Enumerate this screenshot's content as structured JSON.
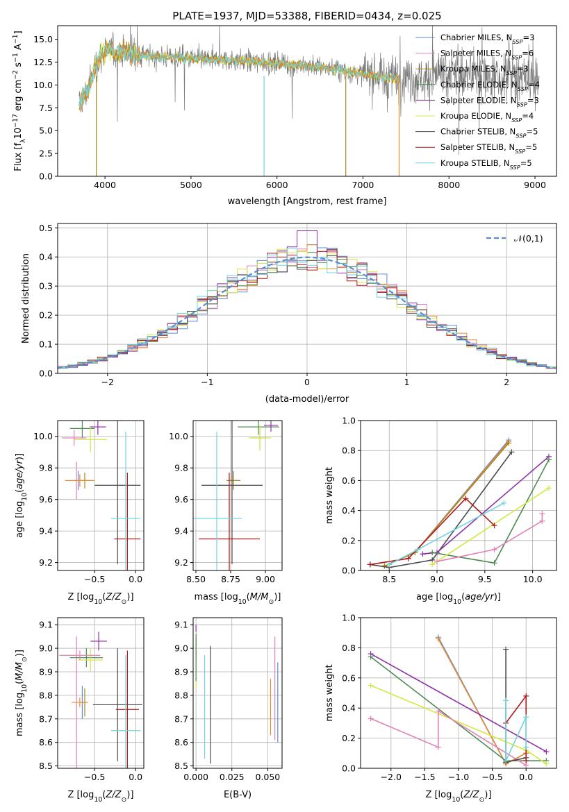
{
  "figure_title": "PLATE=1937, MJD=53388, FIBERID=0434, z=0.025",
  "colors": {
    "Chabrier MILES": "#5b8bd8",
    "Salpeter MILES": "#e37fb5",
    "Kroupa MILES": "#a8871f",
    "Chabrier ELODIE": "#4d8a52",
    "Salpeter ELODIE": "#8e2ea8",
    "Kroupa ELODIE": "#d4e842",
    "Chabrier STELIB": "#4a4a4a",
    "Salpeter STELIB": "#b01818",
    "Kroupa STELIB": "#6fd4de",
    "orange": "#e88a2e",
    "normal": "#5b8bd8"
  },
  "chart_data": [
    {
      "type": "line",
      "name": "spectrum",
      "xlabel": "wavelength [Angstrom, rest frame]",
      "ylabel": "Flux [f_λ 10^-17 erg cm^-2 s^-1 A^-1]",
      "xlim": [
        3450,
        9250
      ],
      "ylim": [
        0,
        16.5
      ],
      "xticks": [
        4000,
        5000,
        6000,
        7000,
        8000,
        9000
      ],
      "yticks": [
        0.0,
        2.5,
        5.0,
        7.5,
        10.0,
        12.5,
        15.0
      ],
      "legend": [
        "Chabrier MILES, N_SSP=3",
        "Salpeter MILES, N_SSP=6",
        "Kroupa MILES, N_SSP=3",
        "Chabrier ELODIE, N_SSP=4",
        "Salpeter ELODIE, N_SSP=3",
        "Kroupa ELODIE, N_SSP=4",
        "Chabrier STELIB, N_SSP=5",
        "Salpeter STELIB, N_SSP=5",
        "Kroupa STELIB, N_SSP=5"
      ],
      "legend_position": "top-right",
      "continuum": [
        [
          3700,
          7.6
        ],
        [
          3800,
          9.5
        ],
        [
          3900,
          12.5
        ],
        [
          4000,
          13.8
        ],
        [
          4200,
          13.6
        ],
        [
          4500,
          13.2
        ],
        [
          5000,
          12.9
        ],
        [
          5500,
          12.7
        ],
        [
          6000,
          12.4
        ],
        [
          6500,
          12.0
        ],
        [
          7000,
          11.2
        ],
        [
          7400,
          10.7
        ]
      ],
      "model_end": 7420
    },
    {
      "type": "line",
      "name": "residual histogram",
      "xlabel": "(data-model)/error",
      "ylabel": "Normed distribution",
      "xlim": [
        -2.5,
        2.5
      ],
      "ylim": [
        0,
        0.515
      ],
      "xticks": [
        -2,
        -1,
        0,
        1,
        2
      ],
      "yticks": [
        0.0,
        0.1,
        0.2,
        0.3,
        0.4,
        0.5
      ],
      "legend": [
        "𝒩(0,1)"
      ],
      "legend_position": "top-right",
      "bin_width": 0.1,
      "grid": true
    },
    {
      "type": "scatter",
      "name": "age vs Z",
      "xlabel": "Z [log10(Z/Z⊙)]",
      "ylabel": "age [log10(age/yr)]",
      "xlim": [
        -0.95,
        0.1
      ],
      "ylim": [
        9.15,
        10.1
      ],
      "xticks": [
        -0.5,
        0.0
      ],
      "yticks": [
        9.2,
        9.4,
        9.6,
        9.8,
        10.0
      ],
      "points": [
        {
          "model": "Chabrier MILES",
          "x": -0.7,
          "xerr": 0.05,
          "y": 9.72,
          "yerr": 0.06
        },
        {
          "model": "Salpeter MILES",
          "x": -0.72,
          "xerr": 0.03,
          "y": 9.72,
          "yerr": 0.12
        },
        {
          "model": "Kroupa MILES",
          "x": -0.62,
          "xerr": 0.07,
          "y": 9.72,
          "yerr": 0.05
        },
        {
          "model": "Chabrier ELODIE",
          "x": -0.65,
          "xerr": 0.15,
          "y": 10.05,
          "yerr": 0.06
        },
        {
          "model": "Salpeter ELODIE",
          "x": -0.46,
          "xerr": 0.1,
          "y": 10.06,
          "yerr": 0.05
        },
        {
          "model": "Kroupa ELODIE",
          "x": -0.55,
          "xerr": 0.2,
          "y": 9.98,
          "yerr": 0.08
        },
        {
          "model": "Chabrier STELIB",
          "x": -0.22,
          "xerr": 0.28,
          "y": 9.69,
          "yerr": 0.5
        },
        {
          "model": "Salpeter STELIB",
          "x": -0.1,
          "xerr": 0.16,
          "y": 9.35,
          "yerr": 0.42
        },
        {
          "model": "Kroupa STELIB",
          "x": -0.12,
          "xerr": 0.18,
          "y": 9.48,
          "yerr": 0.55
        },
        {
          "model": "orange",
          "x": -0.68,
          "xerr": 0.18,
          "y": 9.72,
          "yerr": 0.04
        },
        {
          "model": "Salpeter MILES",
          "x": -0.75,
          "xerr": 0.15,
          "y": 9.99,
          "yerr": 0.05
        }
      ]
    },
    {
      "type": "scatter",
      "name": "age vs mass",
      "xlabel": "mass [log10(M/M⊙)]",
      "ylabel": "",
      "xlim": [
        8.48,
        9.12
      ],
      "ylim": [
        9.15,
        10.1
      ],
      "xticks": [
        8.5,
        8.75,
        9.0
      ],
      "yticks": [
        9.2,
        9.4,
        9.6,
        9.8,
        10.0
      ],
      "points": [
        {
          "model": "Chabrier MILES",
          "x": 8.77,
          "xerr": 0.04,
          "y": 9.72,
          "yerr": 0.06
        },
        {
          "model": "Salpeter MILES",
          "x": 8.96,
          "xerr": 0.06,
          "y": 9.99,
          "yerr": 0.07
        },
        {
          "model": "Kroupa MILES",
          "x": 8.77,
          "xerr": 0.05,
          "y": 9.72,
          "yerr": 0.05
        },
        {
          "model": "Chabrier ELODIE",
          "x": 8.95,
          "xerr": 0.15,
          "y": 10.06,
          "yerr": 0.05
        },
        {
          "model": "Salpeter ELODIE",
          "x": 9.04,
          "xerr": 0.05,
          "y": 10.07,
          "yerr": 0.04
        },
        {
          "model": "Kroupa ELODIE",
          "x": 8.96,
          "xerr": 0.08,
          "y": 9.99,
          "yerr": 0.08
        },
        {
          "model": "Chabrier STELIB",
          "x": 8.76,
          "xerr": 0.22,
          "y": 9.69,
          "yerr": 0.5
        },
        {
          "model": "Salpeter STELIB",
          "x": 8.74,
          "xerr": 0.22,
          "y": 9.35,
          "yerr": 0.42
        },
        {
          "model": "Kroupa STELIB",
          "x": 8.65,
          "xerr": 0.18,
          "y": 9.48,
          "yerr": 0.55
        }
      ]
    },
    {
      "type": "line",
      "name": "mass weight vs age",
      "xlabel": "age [log10(age/yr)]",
      "ylabel": "mass weight",
      "xlim": [
        8.2,
        10.25
      ],
      "ylim": [
        0,
        1.0
      ],
      "xticks": [
        8.5,
        9.0,
        9.5,
        10.0
      ],
      "yticks": [
        0.0,
        0.2,
        0.4,
        0.6,
        0.8,
        1.0
      ],
      "series": [
        {
          "model": "Chabrier MILES",
          "points": [
            [
              8.45,
              0.03
            ],
            [
              8.77,
              0.12
            ],
            [
              9.75,
              0.87
            ]
          ]
        },
        {
          "model": "orange",
          "points": [
            [
              8.45,
              0.03
            ],
            [
              8.77,
              0.12
            ],
            [
              9.75,
              0.86
            ]
          ]
        },
        {
          "model": "Kroupa MILES",
          "points": [
            [
              8.45,
              0.03
            ],
            [
              8.77,
              0.12
            ],
            [
              9.75,
              0.85
            ]
          ]
        },
        {
          "model": "Chabrier STELIB",
          "points": [
            [
              8.3,
              0.04
            ],
            [
              8.5,
              0.02
            ],
            [
              8.95,
              0.07
            ],
            [
              9.78,
              0.79
            ]
          ]
        },
        {
          "model": "Salpeter ELODIE",
          "points": [
            [
              8.85,
              0.11
            ],
            [
              9.0,
              0.12
            ],
            [
              10.17,
              0.76
            ]
          ]
        },
        {
          "model": "Chabrier ELODIE",
          "points": [
            [
              8.95,
              0.12
            ],
            [
              9.6,
              0.05
            ],
            [
              10.17,
              0.74
            ]
          ]
        },
        {
          "model": "Kroupa ELODIE",
          "points": [
            [
              8.95,
              0.04
            ],
            [
              10.17,
              0.55
            ]
          ]
        },
        {
          "model": "Salpeter STELIB",
          "points": [
            [
              8.3,
              0.04
            ],
            [
              8.7,
              0.08
            ],
            [
              9.3,
              0.48
            ],
            [
              9.6,
              0.3
            ]
          ]
        },
        {
          "model": "Kroupa STELIB",
          "points": [
            [
              8.5,
              0.04
            ],
            [
              8.8,
              0.14
            ],
            [
              9.7,
              0.45
            ]
          ]
        },
        {
          "model": "Salpeter MILES",
          "points": [
            [
              9.0,
              0.06
            ],
            [
              9.6,
              0.14
            ],
            [
              10.1,
              0.33
            ],
            [
              10.1,
              0.38
            ]
          ]
        }
      ]
    },
    {
      "type": "scatter",
      "name": "mass vs Z",
      "xlabel": "Z [log10(Z/Z⊙)]",
      "ylabel": "mass [log10(M/M⊙)]",
      "xlim": [
        -0.95,
        0.1
      ],
      "ylim": [
        8.49,
        9.13
      ],
      "xticks": [
        -0.5,
        0.0
      ],
      "yticks": [
        8.5,
        8.6,
        8.7,
        8.8,
        8.9,
        9.0,
        9.1
      ],
      "points": [
        {
          "model": "Chabrier MILES",
          "x": -0.65,
          "xerr": 0.02,
          "y": 8.77,
          "yerr": 0.07
        },
        {
          "model": "Salpeter MILES",
          "x": -0.72,
          "xerr": 0.01,
          "y": 8.77,
          "yerr": 0.28
        },
        {
          "model": "Kroupa MILES",
          "x": -0.62,
          "xerr": 0.02,
          "y": 8.77,
          "yerr": 0.06
        },
        {
          "model": "Chabrier ELODIE",
          "x": -0.6,
          "xerr": 0.2,
          "y": 8.96,
          "yerr": 0.04
        },
        {
          "model": "Salpeter ELODIE",
          "x": -0.45,
          "xerr": 0.1,
          "y": 9.03,
          "yerr": 0.04
        },
        {
          "model": "Kroupa ELODIE",
          "x": -0.55,
          "xerr": 0.15,
          "y": 8.95,
          "yerr": 0.05
        },
        {
          "model": "Chabrier STELIB",
          "x": -0.22,
          "xerr": 0.3,
          "y": 8.76,
          "yerr": 0.24
        },
        {
          "model": "Salpeter STELIB",
          "x": -0.1,
          "xerr": 0.14,
          "y": 8.74,
          "yerr": 0.25
        },
        {
          "model": "Kroupa STELIB",
          "x": -0.12,
          "xerr": 0.18,
          "y": 8.65,
          "yerr": 0.32
        },
        {
          "model": "orange",
          "x": -0.68,
          "xerr": 0.1,
          "y": 8.77,
          "yerr": 0.02
        },
        {
          "model": "Salpeter MILES",
          "x": -0.68,
          "xerr": 0.25,
          "y": 8.97,
          "yerr": 0.02
        }
      ]
    },
    {
      "type": "scatter",
      "name": "mass vs E(B-V)",
      "xlabel": "E(B-V)",
      "ylabel": "",
      "xlim": [
        -0.002,
        0.06
      ],
      "ylim": [
        8.49,
        9.13
      ],
      "xticks": [
        0.0,
        0.025,
        0.05
      ],
      "yticks": [
        8.5,
        8.6,
        8.7,
        8.8,
        8.9,
        9.0,
        9.1
      ],
      "points": [
        {
          "model": "Salpeter ELODIE",
          "x": 0.0,
          "y": 9.03,
          "yerr": 0.07
        },
        {
          "model": "Kroupa ELODIE",
          "x": 0.0,
          "y": 8.95,
          "yerr": 0.12
        },
        {
          "model": "Chabrier ELODIE",
          "x": 0.0,
          "y": 8.96,
          "yerr": 0.1
        },
        {
          "model": "Kroupa STELIB",
          "x": 0.006,
          "y": 8.75,
          "yerr": 0.22
        },
        {
          "model": "Chabrier STELIB",
          "x": 0.01,
          "y": 8.76,
          "yerr": 0.25
        },
        {
          "model": "orange",
          "x": 0.052,
          "y": 8.75,
          "yerr": 0.12
        },
        {
          "model": "Salpeter MILES",
          "x": 0.055,
          "y": 8.83,
          "yerr": 0.22
        },
        {
          "model": "Chabrier MILES",
          "x": 0.057,
          "y": 8.77,
          "yerr": 0.17
        }
      ]
    },
    {
      "type": "line",
      "name": "mass weight vs Z",
      "xlabel": "Z [log10(Z/Z⊙)]",
      "ylabel": "mass weight",
      "xlim": [
        -2.45,
        0.45
      ],
      "ylim": [
        0,
        1.0
      ],
      "xticks": [
        -2.0,
        -1.5,
        -1.0,
        -0.5,
        0.0
      ],
      "yticks": [
        0.0,
        0.2,
        0.4,
        0.6,
        0.8,
        1.0
      ],
      "series": [
        {
          "model": "Chabrier MILES",
          "points": [
            [
              -1.3,
              0.87
            ],
            [
              -0.3,
              0.03
            ],
            [
              0.0,
              0.1
            ]
          ]
        },
        {
          "model": "orange",
          "points": [
            [
              -1.3,
              0.86
            ],
            [
              -0.3,
              0.03
            ],
            [
              0.0,
              0.1
            ]
          ]
        },
        {
          "model": "Salpeter ELODIE",
          "points": [
            [
              -2.3,
              0.76
            ],
            [
              0.3,
              0.11
            ]
          ]
        },
        {
          "model": "Chabrier ELODIE",
          "points": [
            [
              -2.3,
              0.74
            ],
            [
              -0.3,
              0.05
            ],
            [
              0.3,
              0.05
            ]
          ]
        },
        {
          "model": "Kroupa ELODIE",
          "points": [
            [
              -2.3,
              0.55
            ],
            [
              0.0,
              0.12
            ],
            [
              0.3,
              0.03
            ]
          ]
        },
        {
          "model": "Salpeter MILES",
          "points": [
            [
              -2.3,
              0.33
            ],
            [
              -1.3,
              0.14
            ],
            [
              -1.3,
              0.38
            ],
            [
              0.0,
              0.02
            ]
          ]
        },
        {
          "model": "Chabrier STELIB",
          "points": [
            [
              -0.3,
              0.79
            ],
            [
              -0.3,
              0.04
            ],
            [
              0.0,
              0.07
            ]
          ]
        },
        {
          "model": "Salpeter STELIB",
          "points": [
            [
              -0.3,
              0.3
            ],
            [
              0.0,
              0.48
            ],
            [
              0.0,
              0.05
            ]
          ]
        },
        {
          "model": "Kroupa STELIB",
          "points": [
            [
              -0.3,
              0.45
            ],
            [
              -0.3,
              0.05
            ],
            [
              0.0,
              0.34
            ],
            [
              0.0,
              0.14
            ]
          ]
        }
      ]
    }
  ]
}
